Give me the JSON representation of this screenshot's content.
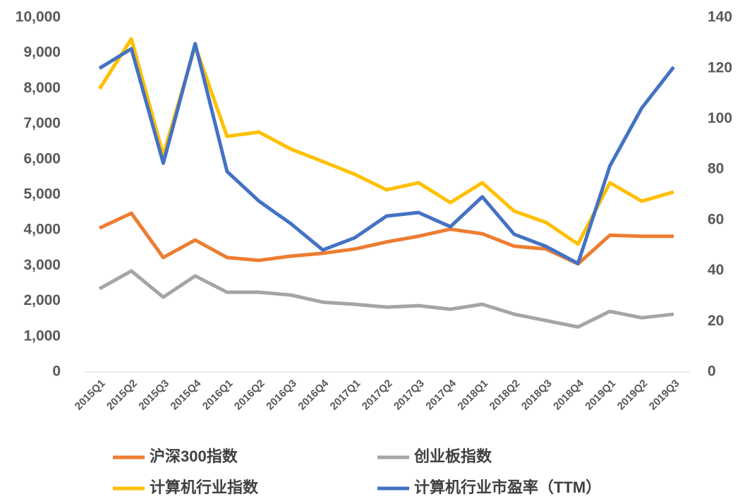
{
  "chart_data": {
    "type": "line",
    "categories": [
      "2015Q1",
      "2015Q2",
      "2015Q3",
      "2015Q4",
      "2016Q1",
      "2016Q2",
      "2016Q3",
      "2016Q4",
      "2017Q1",
      "2017Q2",
      "2017Q3",
      "2017Q4",
      "2018Q1",
      "2018Q2",
      "2018Q3",
      "2018Q4",
      "2019Q1",
      "2019Q2",
      "2019Q3"
    ],
    "series": [
      {
        "name": "沪深300指数",
        "color": "#ed7d31",
        "values": [
          4060,
          4480,
          3230,
          3725,
          3230,
          3150,
          3270,
          3350,
          3470,
          3670,
          3830,
          4030,
          3900,
          3550,
          3470,
          3050,
          3860,
          3830,
          3830
        ]
      },
      {
        "name": "创业板指数",
        "color": "#a5a5a5",
        "values": [
          2350,
          2850,
          2110,
          2710,
          2250,
          2250,
          2170,
          1970,
          1910,
          1830,
          1870,
          1770,
          1910,
          1630,
          1450,
          1270,
          1710,
          1530,
          1630
        ]
      },
      {
        "name": "计算机行业指数",
        "color": "#ffc000",
        "values": [
          7990,
          9400,
          6120,
          9200,
          6650,
          6770,
          6290,
          5940,
          5580,
          5140,
          5340,
          4780,
          5340,
          4540,
          4220,
          3610,
          5340,
          4820,
          5080
        ]
      },
      {
        "name": "计算机行业市盈率（TTM）",
        "color": "#4472c4",
        "axis": "y2",
        "values": [
          120,
          127.7,
          82.5,
          129.7,
          79.2,
          67.5,
          58.6,
          48.2,
          53,
          61.6,
          63,
          57.4,
          69.2,
          54.4,
          49.6,
          42.9,
          81.4,
          104.3,
          120.5
        ]
      }
    ],
    "ylim": [
      0,
      10000
    ],
    "yticks": [
      0,
      {
        "value": 1000,
        "label": "1,000"
      },
      {
        "value": 2000,
        "label": "2,000"
      },
      {
        "value": 3000,
        "label": "3,000"
      },
      {
        "value": 4000,
        "label": "4,000"
      },
      {
        "value": 5000,
        "label": "5,000"
      },
      {
        "value": 6000,
        "label": "6,000"
      },
      {
        "value": 7000,
        "label": "7,000"
      },
      {
        "value": 8000,
        "label": "8,000"
      },
      {
        "value": 9000,
        "label": "9,000"
      },
      {
        "value": 10000,
        "label": "10,000"
      }
    ],
    "y2lim": [
      0,
      140
    ],
    "y2ticks": [
      0,
      20,
      40,
      60,
      80,
      100,
      120,
      140
    ],
    "grid": false,
    "legend": "bottom"
  }
}
